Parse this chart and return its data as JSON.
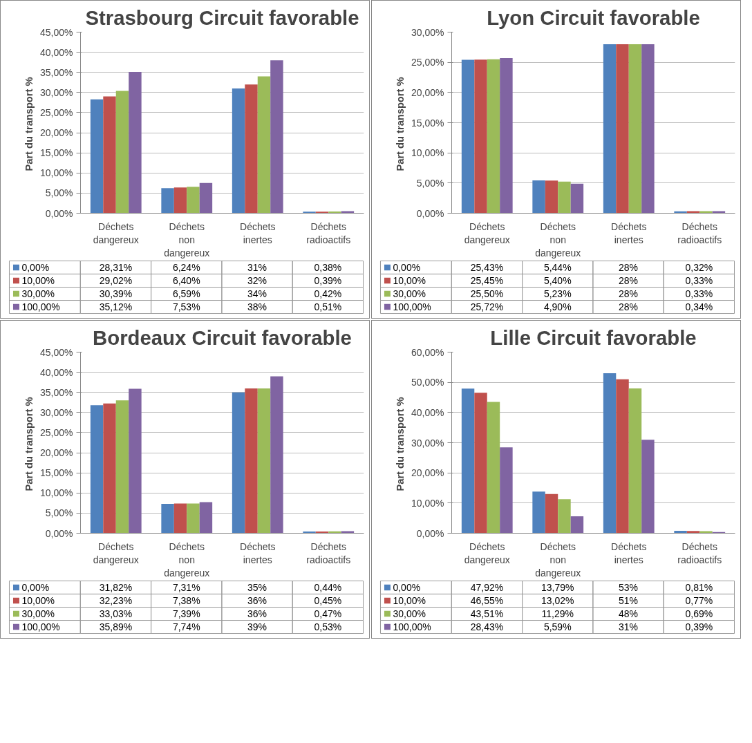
{
  "chart_data": [
    {
      "type": "bar",
      "title": "Strasbourg Circuit favorable",
      "ylabel": "Part du transport  %",
      "categories": [
        "Déchets dangereux",
        "Déchets non dangereux",
        "Déchets inertes",
        "Déchets radioactifs"
      ],
      "ylim": [
        0,
        45
      ],
      "yticks": [
        {
          "value": 0,
          "label": "0,00%"
        },
        {
          "value": 5,
          "label": "5,00%"
        },
        {
          "value": 10,
          "label": "10,00%"
        },
        {
          "value": 15,
          "label": "15,00%"
        },
        {
          "value": 20,
          "label": "20,00%"
        },
        {
          "value": 25,
          "label": "25,00%"
        },
        {
          "value": 30,
          "label": "30,00%"
        },
        {
          "value": 35,
          "label": "35,00%"
        },
        {
          "value": 40,
          "label": "40,00%"
        },
        {
          "value": 45,
          "label": "45,00%"
        }
      ],
      "grid": "y",
      "legend": "bottom",
      "series": [
        {
          "name": "0,00%",
          "color": "#4f81bd",
          "values": [
            28.31,
            6.24,
            31,
            0.38
          ],
          "value_labels": [
            "28,31%",
            "6,24%",
            "31%",
            "0,38%"
          ]
        },
        {
          "name": "10,00%",
          "color": "#c0504d",
          "values": [
            29.02,
            6.4,
            32,
            0.39
          ],
          "value_labels": [
            "29,02%",
            "6,40%",
            "32%",
            "0,39%"
          ]
        },
        {
          "name": "30,00%",
          "color": "#9bbb59",
          "values": [
            30.39,
            6.59,
            34,
            0.42
          ],
          "value_labels": [
            "30,39%",
            "6,59%",
            "34%",
            "0,42%"
          ]
        },
        {
          "name": "100,00%",
          "color": "#8064a2",
          "values": [
            35.12,
            7.53,
            38,
            0.51
          ],
          "value_labels": [
            "35,12%",
            "7,53%",
            "38%",
            "0,51%"
          ]
        }
      ]
    },
    {
      "type": "bar",
      "title": "Lyon Circuit favorable",
      "ylabel": "Part du transport  %",
      "categories": [
        "Déchets dangereux",
        "Déchets non dangereux",
        "Déchets inertes",
        "Déchets radioactifs"
      ],
      "ylim": [
        0,
        30
      ],
      "yticks": [
        {
          "value": 0,
          "label": "0,00%"
        },
        {
          "value": 5,
          "label": "5,00%"
        },
        {
          "value": 10,
          "label": "10,00%"
        },
        {
          "value": 15,
          "label": "15,00%"
        },
        {
          "value": 20,
          "label": "20,00%"
        },
        {
          "value": 25,
          "label": "25,00%"
        },
        {
          "value": 30,
          "label": "30,00%"
        }
      ],
      "grid": "y",
      "legend": "bottom",
      "series": [
        {
          "name": "0,00%",
          "color": "#4f81bd",
          "values": [
            25.43,
            5.44,
            28,
            0.32
          ],
          "value_labels": [
            "25,43%",
            "5,44%",
            "28%",
            "0,32%"
          ]
        },
        {
          "name": "10,00%",
          "color": "#c0504d",
          "values": [
            25.45,
            5.4,
            28,
            0.33
          ],
          "value_labels": [
            "25,45%",
            "5,40%",
            "28%",
            "0,33%"
          ]
        },
        {
          "name": "30,00%",
          "color": "#9bbb59",
          "values": [
            25.5,
            5.23,
            28,
            0.33
          ],
          "value_labels": [
            "25,50%",
            "5,23%",
            "28%",
            "0,33%"
          ]
        },
        {
          "name": "100,00%",
          "color": "#8064a2",
          "values": [
            25.72,
            4.9,
            28,
            0.34
          ],
          "value_labels": [
            "25,72%",
            "4,90%",
            "28%",
            "0,34%"
          ]
        }
      ]
    },
    {
      "type": "bar",
      "title": "Bordeaux Circuit favorable",
      "ylabel": "Part du transport  %",
      "categories": [
        "Déchets dangereux",
        "Déchets non dangereux",
        "Déchets inertes",
        "Déchets radioactifs"
      ],
      "ylim": [
        0,
        45
      ],
      "yticks": [
        {
          "value": 0,
          "label": "0,00%"
        },
        {
          "value": 5,
          "label": "5,00%"
        },
        {
          "value": 10,
          "label": "10,00%"
        },
        {
          "value": 15,
          "label": "15,00%"
        },
        {
          "value": 20,
          "label": "20,00%"
        },
        {
          "value": 25,
          "label": "25,00%"
        },
        {
          "value": 30,
          "label": "30,00%"
        },
        {
          "value": 35,
          "label": "35,00%"
        },
        {
          "value": 40,
          "label": "40,00%"
        },
        {
          "value": 45,
          "label": "45,00%"
        }
      ],
      "grid": "y",
      "legend": "bottom",
      "series": [
        {
          "name": "0,00%",
          "color": "#4f81bd",
          "values": [
            31.82,
            7.31,
            35,
            0.44
          ],
          "value_labels": [
            "31,82%",
            "7,31%",
            "35%",
            "0,44%"
          ]
        },
        {
          "name": "10,00%",
          "color": "#c0504d",
          "values": [
            32.23,
            7.38,
            36,
            0.45
          ],
          "value_labels": [
            "32,23%",
            "7,38%",
            "36%",
            "0,45%"
          ]
        },
        {
          "name": "30,00%",
          "color": "#9bbb59",
          "values": [
            33.03,
            7.39,
            36,
            0.47
          ],
          "value_labels": [
            "33,03%",
            "7,39%",
            "36%",
            "0,47%"
          ]
        },
        {
          "name": "100,00%",
          "color": "#8064a2",
          "values": [
            35.89,
            7.74,
            39,
            0.53
          ],
          "value_labels": [
            "35,89%",
            "7,74%",
            "39%",
            "0,53%"
          ]
        }
      ]
    },
    {
      "type": "bar",
      "title": "Lille Circuit favorable",
      "ylabel": "Part du transport  %",
      "categories": [
        "Déchets dangereux",
        "Déchets non dangereux",
        "Déchets inertes",
        "Déchets radioactifs"
      ],
      "ylim": [
        0,
        60
      ],
      "yticks": [
        {
          "value": 0,
          "label": "0,00%"
        },
        {
          "value": 10,
          "label": "10,00%"
        },
        {
          "value": 20,
          "label": "20,00%"
        },
        {
          "value": 30,
          "label": "30,00%"
        },
        {
          "value": 40,
          "label": "40,00%"
        },
        {
          "value": 50,
          "label": "50,00%"
        },
        {
          "value": 60,
          "label": "60,00%"
        }
      ],
      "grid": "y",
      "legend": "bottom",
      "series": [
        {
          "name": "0,00%",
          "color": "#4f81bd",
          "values": [
            47.92,
            13.79,
            53,
            0.81
          ],
          "value_labels": [
            "47,92%",
            "13,79%",
            "53%",
            "0,81%"
          ]
        },
        {
          "name": "10,00%",
          "color": "#c0504d",
          "values": [
            46.55,
            13.02,
            51,
            0.77
          ],
          "value_labels": [
            "46,55%",
            "13,02%",
            "51%",
            "0,77%"
          ]
        },
        {
          "name": "30,00%",
          "color": "#9bbb59",
          "values": [
            43.51,
            11.29,
            48,
            0.69
          ],
          "value_labels": [
            "43,51%",
            "11,29%",
            "48%",
            "0,69%"
          ]
        },
        {
          "name": "100,00%",
          "color": "#8064a2",
          "values": [
            28.43,
            5.59,
            31,
            0.39
          ],
          "value_labels": [
            "28,43%",
            "5,59%",
            "31%",
            "0,39%"
          ]
        }
      ]
    }
  ]
}
